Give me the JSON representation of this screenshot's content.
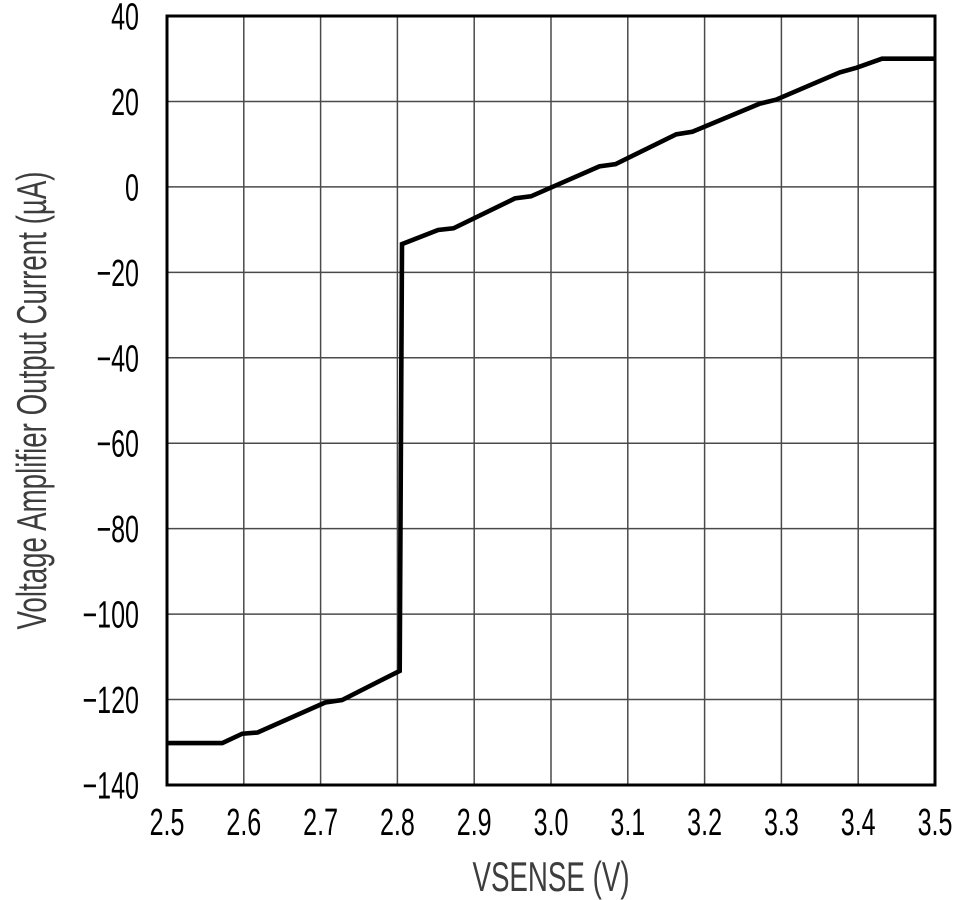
{
  "page": {
    "background": "#ffffff"
  },
  "chart_data": {
    "type": "line",
    "title": "",
    "xlabel": "VSENSE (V)",
    "ylabel": "Voltage Amplifier Output Current (µA)",
    "xlim": [
      2.5,
      3.5
    ],
    "ylim": [
      -140,
      40
    ],
    "grid": true,
    "legend_position": "none",
    "x_ticks": [
      {
        "v": 2.5,
        "label": "2.5"
      },
      {
        "v": 2.6,
        "label": "2.6"
      },
      {
        "v": 2.7,
        "label": "2.7"
      },
      {
        "v": 2.8,
        "label": "2.8"
      },
      {
        "v": 2.9,
        "label": "2.9"
      },
      {
        "v": 3.0,
        "label": "3.0"
      },
      {
        "v": 3.1,
        "label": "3.1"
      },
      {
        "v": 3.2,
        "label": "3.2"
      },
      {
        "v": 3.3,
        "label": "3.3"
      },
      {
        "v": 3.4,
        "label": "3.4"
      },
      {
        "v": 3.5,
        "label": "3.5"
      }
    ],
    "y_ticks": [
      {
        "v": 40,
        "label": "40"
      },
      {
        "v": 20,
        "label": "20"
      },
      {
        "v": 0,
        "label": "0"
      },
      {
        "v": -20,
        "label": "−20"
      },
      {
        "v": -40,
        "label": "−40"
      },
      {
        "v": -60,
        "label": "−60"
      },
      {
        "v": -80,
        "label": "−80"
      },
      {
        "v": -100,
        "label": "−100"
      },
      {
        "v": -120,
        "label": "−120"
      },
      {
        "v": -140,
        "label": "−140"
      }
    ],
    "series": [
      {
        "name": "voltage-amplifier-output-current",
        "color": "#000000",
        "points": [
          [
            2.5,
            -130.2
          ],
          [
            2.572,
            -130.2
          ],
          [
            2.598,
            -128.0
          ],
          [
            2.618,
            -127.7
          ],
          [
            2.706,
            -120.7
          ],
          [
            2.728,
            -120.1
          ],
          [
            2.803,
            -113.3
          ],
          [
            2.806,
            -13.4
          ],
          [
            2.853,
            -10.1
          ],
          [
            2.873,
            -9.7
          ],
          [
            2.953,
            -2.7
          ],
          [
            2.974,
            -2.2
          ],
          [
            3.063,
            4.8
          ],
          [
            3.084,
            5.3
          ],
          [
            3.163,
            12.3
          ],
          [
            3.184,
            12.9
          ],
          [
            3.272,
            19.5
          ],
          [
            3.293,
            20.4
          ],
          [
            3.376,
            26.8
          ],
          [
            3.398,
            27.9
          ],
          [
            3.431,
            30.0
          ],
          [
            3.5,
            30.0
          ]
        ]
      }
    ],
    "colors": {
      "curve": "#000000",
      "grid": "#4a4a4a",
      "border": "#000000",
      "tick_label": "#000000",
      "axis_label": "#3d3d3d",
      "background": "#ffffff"
    }
  }
}
